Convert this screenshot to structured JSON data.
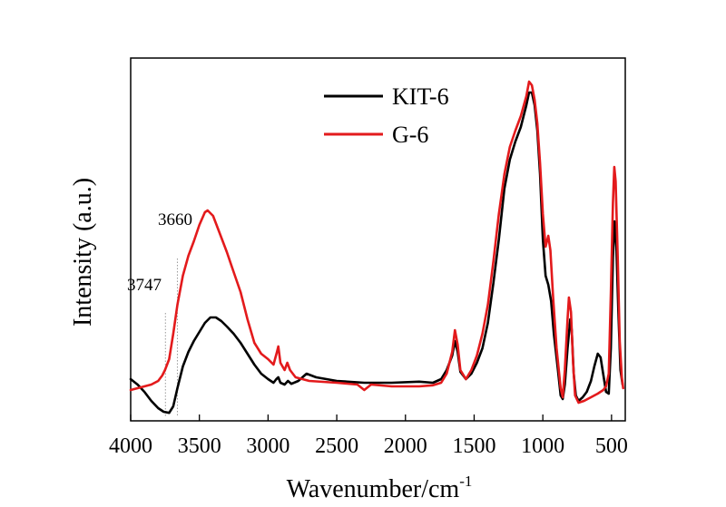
{
  "chart_data": {
    "type": "line",
    "xlabel": "Wavenumber/cm",
    "xlabel_superscript": "-1",
    "ylabel": "Intensity (a.u.)",
    "xlim": [
      4000,
      400
    ],
    "ylim": [
      0,
      100
    ],
    "x_reversed": true,
    "y_ticks_labeled": false,
    "x_ticks": [
      4000,
      3500,
      3000,
      2500,
      2000,
      1500,
      1000,
      500
    ],
    "x_tick_labels": [
      "4000",
      "3500",
      "3000",
      "2500",
      "2000",
      "1500",
      "1000",
      "500"
    ],
    "grid": false,
    "legend_position": "top-center",
    "annotations": [
      {
        "text": "3660",
        "x": 3660
      },
      {
        "text": "3747",
        "x": 3747
      }
    ],
    "series": [
      {
        "name": "KIT-6",
        "color": "#000000",
        "points": [
          [
            4000,
            11.5
          ],
          [
            3950,
            10.0
          ],
          [
            3900,
            8.0
          ],
          [
            3850,
            5.5
          ],
          [
            3800,
            3.5
          ],
          [
            3760,
            2.5
          ],
          [
            3720,
            2.2
          ],
          [
            3690,
            4.0
          ],
          [
            3660,
            9.0
          ],
          [
            3620,
            15.0
          ],
          [
            3580,
            19.0
          ],
          [
            3540,
            22.0
          ],
          [
            3500,
            24.5
          ],
          [
            3460,
            27.0
          ],
          [
            3420,
            28.5
          ],
          [
            3380,
            28.5
          ],
          [
            3340,
            27.5
          ],
          [
            3300,
            26.0
          ],
          [
            3250,
            24.0
          ],
          [
            3200,
            21.5
          ],
          [
            3150,
            18.5
          ],
          [
            3100,
            15.5
          ],
          [
            3050,
            13.0
          ],
          [
            3000,
            11.5
          ],
          [
            2960,
            10.5
          ],
          [
            2940,
            11.5
          ],
          [
            2925,
            12.0
          ],
          [
            2910,
            10.5
          ],
          [
            2880,
            10.0
          ],
          [
            2855,
            11.0
          ],
          [
            2830,
            10.2
          ],
          [
            2780,
            11.0
          ],
          [
            2720,
            13.0
          ],
          [
            2650,
            12.0
          ],
          [
            2500,
            11.0
          ],
          [
            2300,
            10.5
          ],
          [
            2100,
            10.5
          ],
          [
            1900,
            10.8
          ],
          [
            1800,
            10.5
          ],
          [
            1740,
            11.5
          ],
          [
            1700,
            14.0
          ],
          [
            1660,
            18.0
          ],
          [
            1640,
            22.0
          ],
          [
            1620,
            19.0
          ],
          [
            1600,
            13.5
          ],
          [
            1560,
            11.5
          ],
          [
            1520,
            13.0
          ],
          [
            1480,
            16.0
          ],
          [
            1440,
            20.0
          ],
          [
            1400,
            27.0
          ],
          [
            1360,
            38.0
          ],
          [
            1320,
            50.0
          ],
          [
            1280,
            64.0
          ],
          [
            1240,
            72.0
          ],
          [
            1200,
            77.0
          ],
          [
            1160,
            81.0
          ],
          [
            1120,
            87.0
          ],
          [
            1100,
            90.5
          ],
          [
            1080,
            90.5
          ],
          [
            1060,
            87.0
          ],
          [
            1040,
            80.0
          ],
          [
            1020,
            68.0
          ],
          [
            1000,
            50.0
          ],
          [
            980,
            40.0
          ],
          [
            960,
            37.5
          ],
          [
            940,
            33.0
          ],
          [
            920,
            24.0
          ],
          [
            890,
            14.0
          ],
          [
            870,
            7.0
          ],
          [
            855,
            6.0
          ],
          [
            840,
            10.0
          ],
          [
            820,
            20.0
          ],
          [
            800,
            28.0
          ],
          [
            790,
            25.0
          ],
          [
            775,
            13.0
          ],
          [
            760,
            7.0
          ],
          [
            740,
            5.5
          ],
          [
            710,
            6.5
          ],
          [
            680,
            8.0
          ],
          [
            650,
            11.0
          ],
          [
            625,
            15.0
          ],
          [
            600,
            18.5
          ],
          [
            580,
            17.5
          ],
          [
            565,
            14.0
          ],
          [
            540,
            8.0
          ],
          [
            520,
            7.5
          ],
          [
            505,
            20.0
          ],
          [
            490,
            45.0
          ],
          [
            478,
            55.0
          ],
          [
            465,
            48.0
          ],
          [
            450,
            30.0
          ],
          [
            435,
            14.0
          ],
          [
            420,
            10.0
          ]
        ]
      },
      {
        "name": "G-6",
        "color": "#e31a1c",
        "points": [
          [
            4000,
            8.5
          ],
          [
            3950,
            9.0
          ],
          [
            3900,
            9.5
          ],
          [
            3850,
            10.0
          ],
          [
            3800,
            11.0
          ],
          [
            3770,
            12.5
          ],
          [
            3750,
            14.0
          ],
          [
            3720,
            17.0
          ],
          [
            3690,
            24.0
          ],
          [
            3660,
            32.0
          ],
          [
            3620,
            40.0
          ],
          [
            3580,
            45.5
          ],
          [
            3540,
            49.5
          ],
          [
            3500,
            54.0
          ],
          [
            3460,
            57.5
          ],
          [
            3440,
            58.0
          ],
          [
            3400,
            56.5
          ],
          [
            3360,
            52.5
          ],
          [
            3300,
            46.5
          ],
          [
            3250,
            41.0
          ],
          [
            3200,
            35.5
          ],
          [
            3150,
            28.0
          ],
          [
            3100,
            21.5
          ],
          [
            3050,
            18.5
          ],
          [
            3000,
            17.0
          ],
          [
            2960,
            15.5
          ],
          [
            2935,
            19.0
          ],
          [
            2925,
            20.5
          ],
          [
            2910,
            16.0
          ],
          [
            2880,
            14.0
          ],
          [
            2860,
            16.0
          ],
          [
            2840,
            14.0
          ],
          [
            2800,
            12.0
          ],
          [
            2700,
            11.0
          ],
          [
            2500,
            10.5
          ],
          [
            2350,
            10.0
          ],
          [
            2300,
            8.5
          ],
          [
            2250,
            10.0
          ],
          [
            2100,
            9.5
          ],
          [
            1900,
            9.5
          ],
          [
            1800,
            9.8
          ],
          [
            1740,
            10.5
          ],
          [
            1700,
            13.0
          ],
          [
            1660,
            19.0
          ],
          [
            1640,
            25.0
          ],
          [
            1620,
            21.0
          ],
          [
            1600,
            14.0
          ],
          [
            1560,
            11.5
          ],
          [
            1520,
            14.0
          ],
          [
            1480,
            18.0
          ],
          [
            1440,
            24.0
          ],
          [
            1400,
            32.0
          ],
          [
            1360,
            44.0
          ],
          [
            1320,
            57.0
          ],
          [
            1280,
            68.0
          ],
          [
            1240,
            75.5
          ],
          [
            1200,
            80.0
          ],
          [
            1160,
            84.0
          ],
          [
            1120,
            89.5
          ],
          [
            1100,
            93.5
          ],
          [
            1080,
            92.5
          ],
          [
            1060,
            88.5
          ],
          [
            1040,
            82.0
          ],
          [
            1020,
            71.0
          ],
          [
            1000,
            57.0
          ],
          [
            980,
            48.0
          ],
          [
            960,
            51.0
          ],
          [
            945,
            47.0
          ],
          [
            925,
            34.0
          ],
          [
            900,
            20.0
          ],
          [
            870,
            9.0
          ],
          [
            855,
            6.5
          ],
          [
            840,
            14.0
          ],
          [
            820,
            28.0
          ],
          [
            810,
            34.0
          ],
          [
            795,
            30.0
          ],
          [
            780,
            16.0
          ],
          [
            765,
            7.0
          ],
          [
            740,
            5.0
          ],
          [
            700,
            5.5
          ],
          [
            650,
            6.5
          ],
          [
            600,
            7.5
          ],
          [
            560,
            8.5
          ],
          [
            540,
            9.5
          ],
          [
            520,
            13.0
          ],
          [
            505,
            35.0
          ],
          [
            490,
            60.0
          ],
          [
            480,
            70.0
          ],
          [
            470,
            66.0
          ],
          [
            455,
            45.0
          ],
          [
            440,
            22.0
          ],
          [
            425,
            12.0
          ],
          [
            415,
            9.0
          ]
        ]
      }
    ]
  }
}
